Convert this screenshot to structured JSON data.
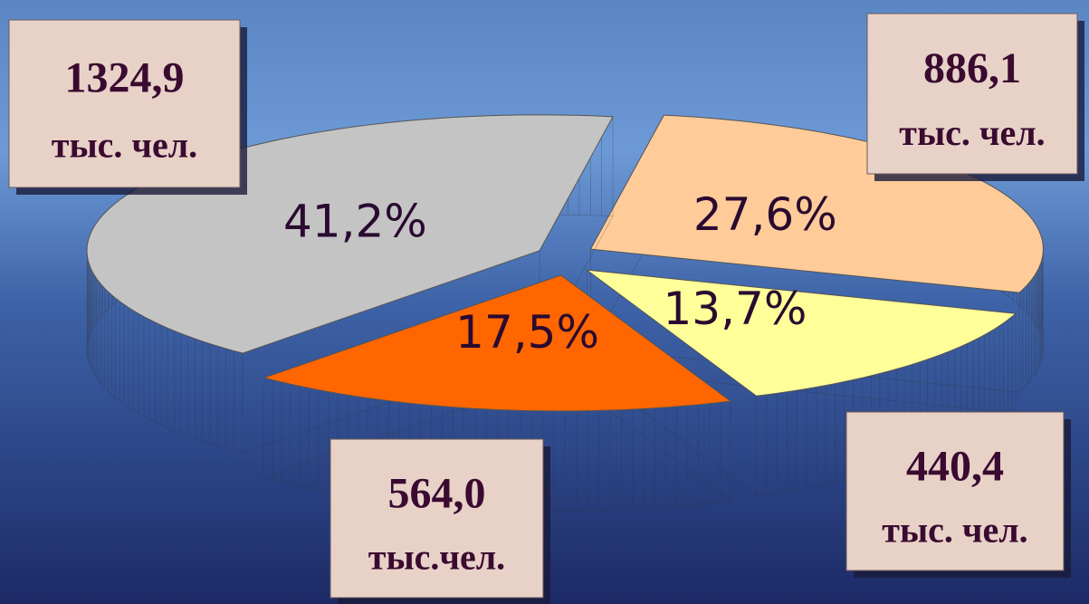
{
  "chart_data": {
    "type": "pie",
    "values": [
      41.2,
      27.6,
      13.7,
      17.5
    ],
    "value_labels": [
      "41,2%",
      "27,6%",
      "13,7%",
      "17,5%"
    ],
    "colors": [
      "#c4c4c4",
      "#ffcc99",
      "#ffff99",
      "#ff6600"
    ],
    "side_colors": [
      "#858585",
      "#a08262",
      "#999966",
      "#8a3200"
    ],
    "callouts": [
      {
        "value": "1324,9",
        "unit": "тыс. чел."
      },
      {
        "value": "886,1",
        "unit": "тыс. чел."
      },
      {
        "value": "440,4",
        "unit": "тыс. чел."
      },
      {
        "value": "564,0",
        "unit": "тыс.чел."
      }
    ]
  }
}
